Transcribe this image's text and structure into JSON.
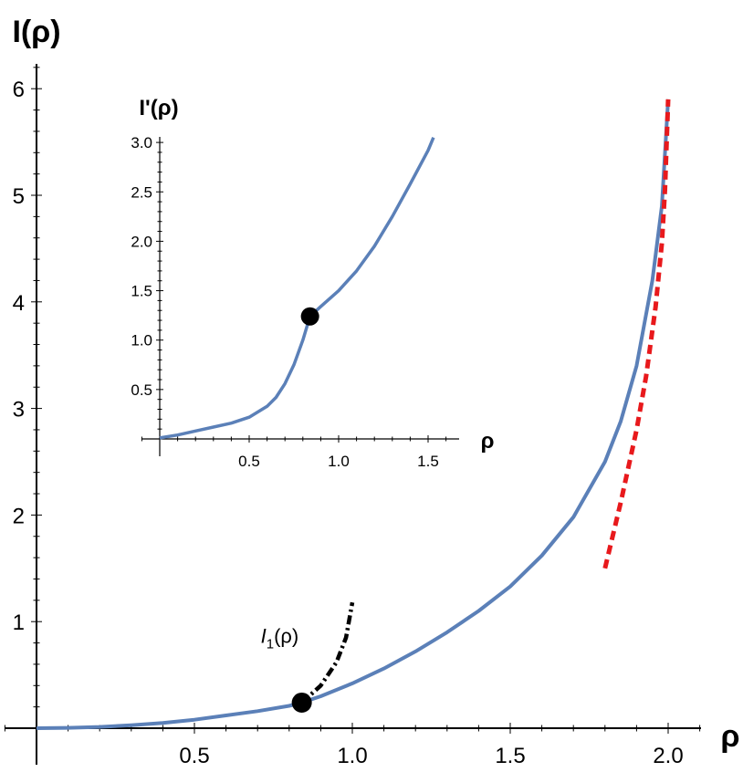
{
  "chart_data": [
    {
      "type": "line",
      "xlabel": "ρ",
      "ylabel": "I(ρ)",
      "xlim": [
        0,
        2.1
      ],
      "ylim": [
        0,
        6.3
      ],
      "xticks": [
        "0.5",
        "1.0",
        "1.5",
        "2.0"
      ],
      "yticks": [
        "1",
        "2",
        "3",
        "4",
        "5",
        "6"
      ],
      "grid": false,
      "series": [
        {
          "color": "#5B80B8",
          "style": "solid",
          "x": [
            0,
            0.1,
            0.2,
            0.3,
            0.4,
            0.5,
            0.6,
            0.7,
            0.8,
            0.84,
            0.9,
            1.0,
            1.1,
            1.2,
            1.3,
            1.4,
            1.5,
            1.6,
            1.7,
            1.8,
            1.85,
            1.9,
            1.95,
            1.98,
            2.0
          ],
          "values": [
            0,
            0.003,
            0.012,
            0.028,
            0.05,
            0.08,
            0.12,
            0.16,
            0.21,
            0.24,
            0.3,
            0.42,
            0.56,
            0.72,
            0.9,
            1.1,
            1.33,
            1.62,
            1.98,
            2.5,
            2.88,
            3.4,
            4.2,
            4.9,
            5.9
          ]
        },
        {
          "color": "#E8191C",
          "style": "dashed",
          "x": [
            1.8,
            1.85,
            1.9,
            1.93,
            1.96,
            1.98,
            1.99,
            2.0
          ],
          "values": [
            1.5,
            2.12,
            2.8,
            3.3,
            3.95,
            4.55,
            5.05,
            5.9
          ]
        },
        {
          "color": "#000000",
          "style": "dashdot",
          "x": [
            0.84,
            0.9,
            0.95,
            0.98,
            1.0
          ],
          "values": [
            0.24,
            0.4,
            0.62,
            0.85,
            1.18
          ]
        }
      ],
      "markers": [
        {
          "x": 0.84,
          "y": 0.24
        }
      ],
      "annotations": [
        {
          "base": "I",
          "sub": "1",
          "rest": "(ρ)",
          "x": 0.77,
          "y": 0.8
        }
      ]
    },
    {
      "type": "line",
      "xlabel": "ρ",
      "ylabel": "I'(ρ)",
      "xlim": [
        0,
        1.6
      ],
      "ylim": [
        0,
        3.0
      ],
      "xticks": [
        "0.5",
        "1.0",
        "1.5"
      ],
      "yticks": [
        "0.5",
        "1.0",
        "1.5",
        "2.0",
        "2.5",
        "3.0"
      ],
      "grid": false,
      "series": [
        {
          "color": "#5B80B8",
          "style": "solid",
          "x": [
            0,
            0.1,
            0.2,
            0.3,
            0.4,
            0.5,
            0.6,
            0.65,
            0.7,
            0.75,
            0.8,
            0.84,
            0.9,
            1.0,
            1.1,
            1.2,
            1.3,
            1.4,
            1.5,
            1.53
          ],
          "values": [
            0.01,
            0.04,
            0.08,
            0.12,
            0.16,
            0.22,
            0.33,
            0.42,
            0.56,
            0.75,
            1.0,
            1.24,
            1.34,
            1.5,
            1.7,
            1.95,
            2.25,
            2.58,
            2.92,
            3.05
          ]
        }
      ],
      "markers": [
        {
          "x": 0.84,
          "y": 1.24
        }
      ]
    }
  ]
}
